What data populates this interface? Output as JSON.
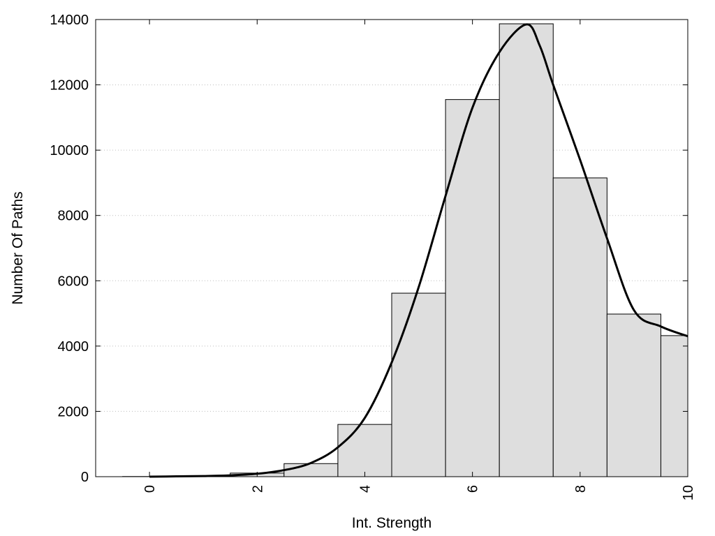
{
  "chart_data": {
    "type": "bar",
    "xlabel": "Int. Strength",
    "ylabel": "Number Of Paths",
    "xlim": [
      -1,
      10
    ],
    "ylim": [
      0,
      14000
    ],
    "xticks": [
      0,
      2,
      4,
      6,
      8,
      10
    ],
    "xtick_labels": [
      "0",
      "2",
      "4",
      "6",
      "8",
      "10"
    ],
    "yticks": [
      0,
      2000,
      4000,
      6000,
      8000,
      10000,
      12000,
      14000
    ],
    "ytick_labels": [
      "0",
      "2000",
      "4000",
      "6000",
      "8000",
      "10000",
      "12000",
      "14000"
    ],
    "grid": "horizontal-dotted",
    "bin_width": 1,
    "bar_centers": [
      0,
      1,
      2,
      3,
      4,
      5,
      6,
      7,
      8,
      9,
      10
    ],
    "values": [
      5,
      15,
      110,
      400,
      1600,
      5620,
      11550,
      13870,
      9150,
      4980,
      4320
    ],
    "bar_color": "#dedede",
    "curve": {
      "x": [
        0,
        0.5,
        1,
        1.5,
        2,
        2.5,
        3,
        3.5,
        4,
        4.5,
        5,
        5.5,
        6,
        6.5,
        7,
        7.25,
        7.5,
        8,
        8.5,
        9,
        9.5,
        10
      ],
      "y": [
        0,
        10,
        20,
        40,
        90,
        200,
        420,
        900,
        1800,
        3500,
        5800,
        8600,
        11300,
        13000,
        13850,
        13200,
        12000,
        9700,
        7300,
        5100,
        4600,
        4300
      ]
    }
  }
}
